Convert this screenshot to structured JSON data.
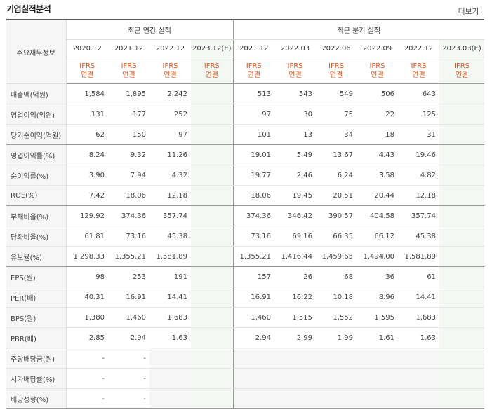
{
  "title": "기업실적분석",
  "more_label": "더보기",
  "more_arrow": "›",
  "header": {
    "main_label": "주요재무정보",
    "annual_group": "최근 연간 실적",
    "quarter_group": "최근 분기 실적",
    "annual_periods": [
      "2020.12",
      "2021.12",
      "2022.12",
      "2023.12(E)"
    ],
    "quarter_periods": [
      "2021.12",
      "2022.03",
      "2022.06",
      "2022.09",
      "2022.12",
      "2023.03(E)"
    ],
    "basis_line1": "IFRS",
    "basis_line2": "연결"
  },
  "rows": [
    {
      "label": "매출액(억원)",
      "annual": [
        "1,584",
        "1,895",
        "2,242",
        ""
      ],
      "quarter": [
        "513",
        "543",
        "549",
        "506",
        "643",
        ""
      ]
    },
    {
      "label": "영업이익(억원)",
      "annual": [
        "131",
        "177",
        "252",
        ""
      ],
      "quarter": [
        "97",
        "30",
        "75",
        "22",
        "125",
        ""
      ]
    },
    {
      "label": "당기순이익(억원)",
      "annual": [
        "62",
        "150",
        "97",
        ""
      ],
      "quarter": [
        "101",
        "13",
        "34",
        "18",
        "31",
        ""
      ]
    },
    {
      "label": "영업이익률(%)",
      "annual": [
        "8.24",
        "9.32",
        "11.26",
        ""
      ],
      "quarter": [
        "19.01",
        "5.49",
        "13.67",
        "4.43",
        "19.46",
        ""
      ]
    },
    {
      "label": "순이익률(%)",
      "annual": [
        "3.90",
        "7.94",
        "4.32",
        ""
      ],
      "quarter": [
        "19.77",
        "2.46",
        "6.24",
        "3.58",
        "4.82",
        ""
      ]
    },
    {
      "label": "ROE(%)",
      "annual": [
        "7.42",
        "18.06",
        "12.18",
        ""
      ],
      "quarter": [
        "18.06",
        "19.45",
        "20.51",
        "20.44",
        "12.18",
        ""
      ]
    },
    {
      "label": "부채비율(%)",
      "annual": [
        "129.92",
        "374.36",
        "357.74",
        ""
      ],
      "quarter": [
        "374.36",
        "346.42",
        "390.57",
        "404.58",
        "357.74",
        ""
      ]
    },
    {
      "label": "당좌비율(%)",
      "annual": [
        "61.81",
        "73.16",
        "45.38",
        ""
      ],
      "quarter": [
        "73.16",
        "69.16",
        "66.35",
        "66.12",
        "45.38",
        ""
      ]
    },
    {
      "label": "유보율(%)",
      "annual": [
        "1,298.33",
        "1,355.21",
        "1,581.89",
        ""
      ],
      "quarter": [
        "1,355.21",
        "1,416.44",
        "1,459.65",
        "1,494.00",
        "1,581.89",
        ""
      ]
    },
    {
      "label": "EPS(원)",
      "annual": [
        "98",
        "253",
        "191",
        ""
      ],
      "quarter": [
        "157",
        "26",
        "68",
        "36",
        "61",
        ""
      ]
    },
    {
      "label": "PER(배)",
      "annual": [
        "40.31",
        "16.91",
        "14.41",
        ""
      ],
      "quarter": [
        "16.91",
        "16.22",
        "10.18",
        "8.96",
        "14.41",
        ""
      ]
    },
    {
      "label": "BPS(원)",
      "annual": [
        "1,380",
        "1,460",
        "1,683",
        ""
      ],
      "quarter": [
        "1,460",
        "1,515",
        "1,552",
        "1,595",
        "1,683",
        ""
      ]
    },
    {
      "label": "PBR(배)",
      "annual": [
        "2.85",
        "2.94",
        "1.63",
        ""
      ],
      "quarter": [
        "2.94",
        "2.99",
        "1.99",
        "1.61",
        "1.63",
        ""
      ]
    },
    {
      "label": "주당배당금(원)",
      "annual": [
        "-",
        "-",
        "",
        ""
      ],
      "quarter": [
        "",
        "",
        "",
        "",
        "",
        ""
      ]
    },
    {
      "label": "시가배당률(%)",
      "annual": [
        "-",
        "-",
        "",
        ""
      ],
      "quarter": [
        "",
        "",
        "",
        "",
        "",
        ""
      ]
    },
    {
      "label": "배당성향(%)",
      "annual": [
        "-",
        "-",
        "",
        ""
      ],
      "quarter": [
        "",
        "",
        "",
        "",
        "",
        ""
      ]
    }
  ]
}
